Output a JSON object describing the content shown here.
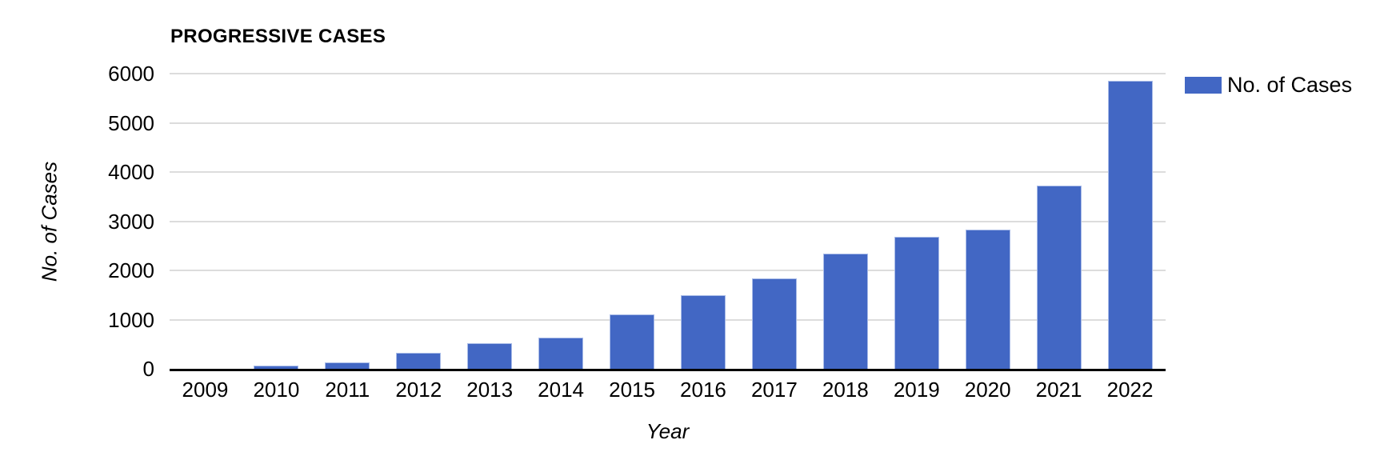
{
  "chart_data": {
    "type": "bar",
    "title": "PROGRESSIVE CASES",
    "xlabel": "Year",
    "ylabel": "No. of Cases",
    "categories": [
      "2009",
      "2010",
      "2011",
      "2012",
      "2013",
      "2014",
      "2015",
      "2016",
      "2017",
      "2018",
      "2019",
      "2020",
      "2021",
      "2022"
    ],
    "series": [
      {
        "name": "No. of Cases",
        "values": [
          0,
          65,
          135,
          320,
          515,
          640,
          1100,
          1490,
          1845,
          2335,
          2685,
          2825,
          3725,
          5850
        ],
        "color": "#4267c4"
      }
    ],
    "ylim": [
      0,
      6000
    ],
    "yticks": [
      0,
      1000,
      2000,
      3000,
      4000,
      5000,
      6000
    ],
    "grid": true,
    "legend_position": "outside-top-right",
    "colors": {
      "bar": "#4267c4",
      "bar_border": "#a9bce8",
      "gridline": "#dcdcdc",
      "axis": "#000000",
      "text": "#000000",
      "background": "#ffffff"
    }
  }
}
